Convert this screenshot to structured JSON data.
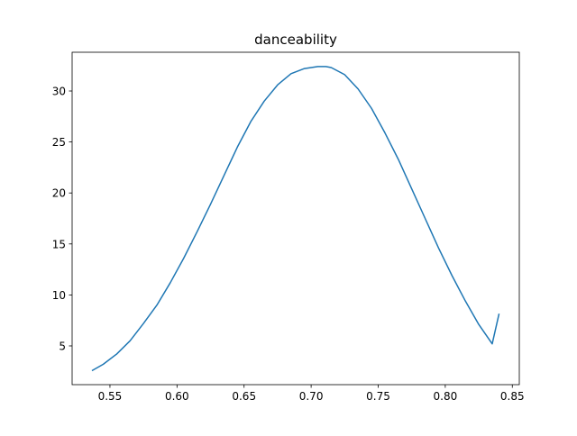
{
  "chart_data": {
    "type": "line",
    "title": "danceability",
    "xlabel": "",
    "ylabel": "",
    "xlim": [
      0.5218,
      0.8552
    ],
    "ylim": [
      1.2,
      33.8
    ],
    "xticks": [
      0.55,
      0.6,
      0.65,
      0.7,
      0.75,
      0.8,
      0.85
    ],
    "xtick_labels": [
      "0.55",
      "0.60",
      "0.65",
      "0.70",
      "0.75",
      "0.80",
      "0.85"
    ],
    "yticks": [
      5,
      10,
      15,
      20,
      25,
      30
    ],
    "ytick_labels": [
      "5",
      "10",
      "15",
      "20",
      "25",
      "30"
    ],
    "grid": false,
    "line_color": "#1f77b4",
    "series": [
      {
        "x": [
          0.537,
          0.545,
          0.555,
          0.565,
          0.575,
          0.585,
          0.595,
          0.605,
          0.615,
          0.625,
          0.635,
          0.645,
          0.655,
          0.665,
          0.675,
          0.685,
          0.695,
          0.705,
          0.711,
          0.715,
          0.725,
          0.735,
          0.745,
          0.755,
          0.765,
          0.775,
          0.785,
          0.795,
          0.805,
          0.815,
          0.825,
          0.835,
          0.84
        ],
        "y": [
          2.6,
          3.2,
          4.2,
          5.5,
          7.2,
          9.0,
          11.2,
          13.6,
          16.2,
          18.9,
          21.7,
          24.5,
          27.0,
          29.0,
          30.6,
          31.7,
          32.2,
          32.4,
          32.4,
          32.3,
          31.6,
          30.2,
          28.3,
          25.9,
          23.3,
          20.4,
          17.5,
          14.6,
          11.9,
          9.4,
          7.1,
          5.2,
          8.1
        ]
      }
    ]
  }
}
